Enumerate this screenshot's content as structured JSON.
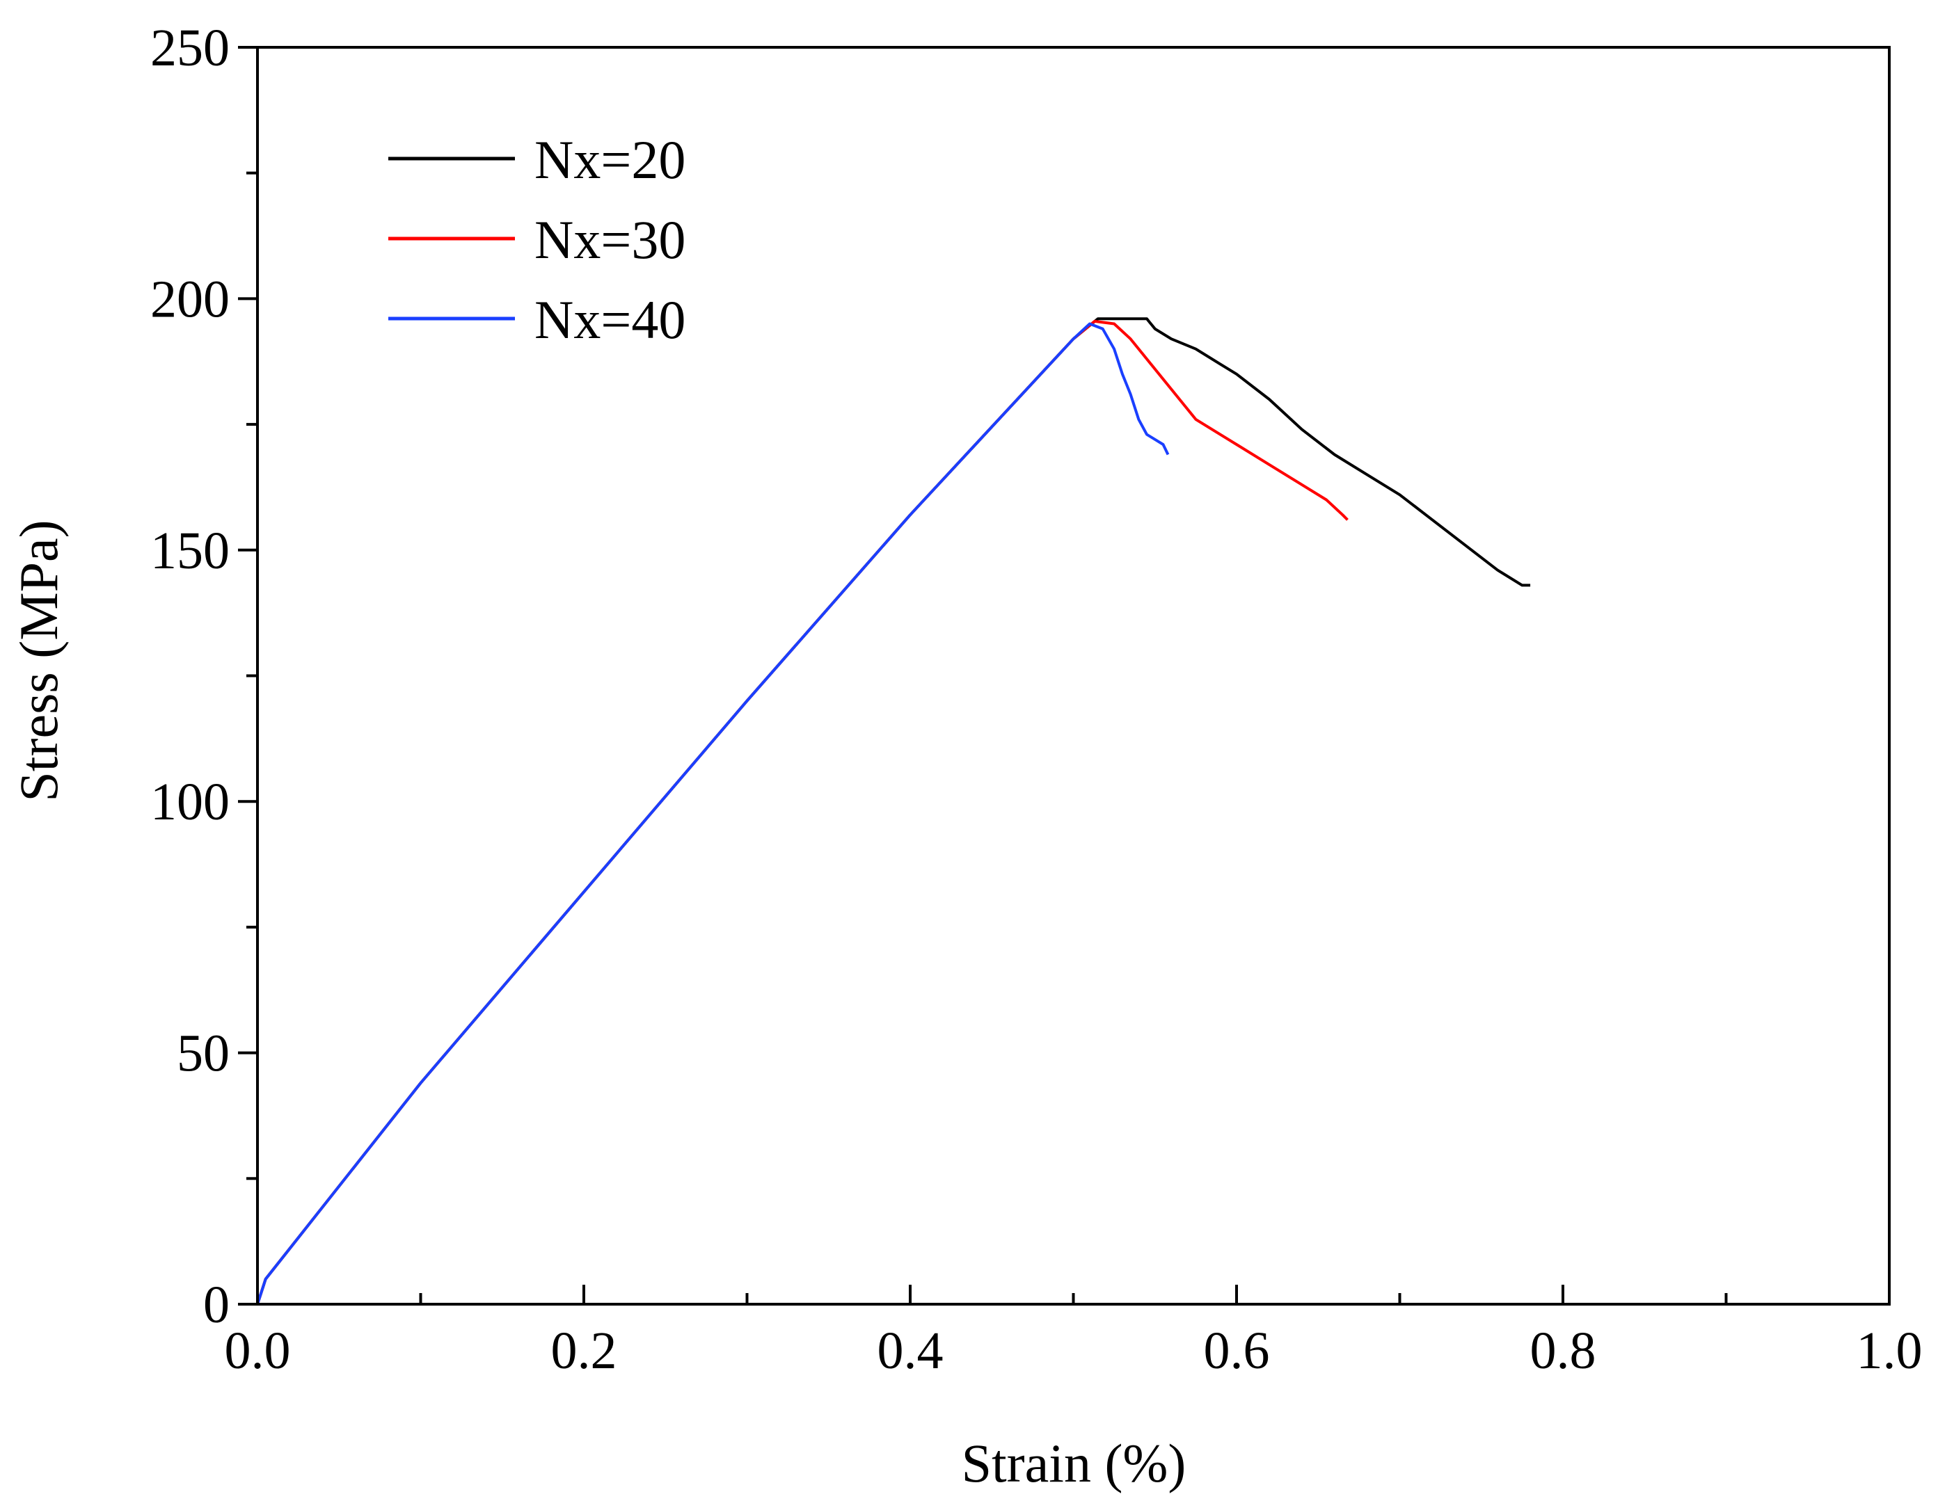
{
  "chart_data": {
    "type": "line",
    "title": "",
    "xlabel": "Strain (%)",
    "ylabel": "Stress (MPa)",
    "xlim": [
      0.0,
      1.0
    ],
    "ylim": [
      0,
      250
    ],
    "x_ticks": [
      0.0,
      0.2,
      0.4,
      0.6,
      0.8,
      1.0
    ],
    "x_tick_labels": [
      "0.0",
      "0.2",
      "0.4",
      "0.6",
      "0.8",
      "1.0"
    ],
    "x_minor_ticks": [
      0.1,
      0.3,
      0.5,
      0.7,
      0.9
    ],
    "y_ticks": [
      0,
      50,
      100,
      150,
      200,
      250
    ],
    "y_tick_labels": [
      "0",
      "50",
      "100",
      "150",
      "200",
      "250"
    ],
    "y_minor_ticks": [
      25,
      75,
      125,
      175,
      225
    ],
    "grid": false,
    "legend_position": "top-left",
    "series": [
      {
        "name": "Nx=20",
        "color": "#000000",
        "x": [
          0.0,
          0.005,
          0.1,
          0.2,
          0.3,
          0.4,
          0.5,
          0.515,
          0.53,
          0.545,
          0.55,
          0.56,
          0.575,
          0.59,
          0.6,
          0.62,
          0.64,
          0.66,
          0.68,
          0.7,
          0.72,
          0.74,
          0.76,
          0.775,
          0.78
        ],
        "y": [
          0,
          5,
          44,
          82,
          120,
          157,
          192,
          196,
          196,
          196,
          194,
          192,
          190,
          187,
          185,
          180,
          174,
          169,
          165,
          161,
          156,
          151,
          146,
          143,
          143
        ]
      },
      {
        "name": "Nx=30",
        "color": "#ff0000",
        "x": [
          0.0,
          0.005,
          0.1,
          0.2,
          0.3,
          0.4,
          0.5,
          0.513,
          0.525,
          0.535,
          0.545,
          0.56,
          0.575,
          0.59,
          0.6,
          0.62,
          0.64,
          0.655,
          0.665,
          0.668
        ],
        "y": [
          0,
          5,
          44,
          82,
          120,
          157,
          192,
          195.5,
          195,
          192,
          188,
          182,
          176,
          173,
          171,
          167,
          163,
          160,
          157,
          156
        ]
      },
      {
        "name": "Nx=40",
        "color": "#1a3fff",
        "x": [
          0.0,
          0.005,
          0.1,
          0.2,
          0.3,
          0.4,
          0.5,
          0.51,
          0.518,
          0.525,
          0.53,
          0.535,
          0.54,
          0.545,
          0.55,
          0.555,
          0.558
        ],
        "y": [
          0,
          5,
          44,
          82,
          120,
          157,
          192,
          195,
          194,
          190,
          185,
          181,
          176,
          173,
          172,
          171,
          169
        ]
      }
    ]
  }
}
